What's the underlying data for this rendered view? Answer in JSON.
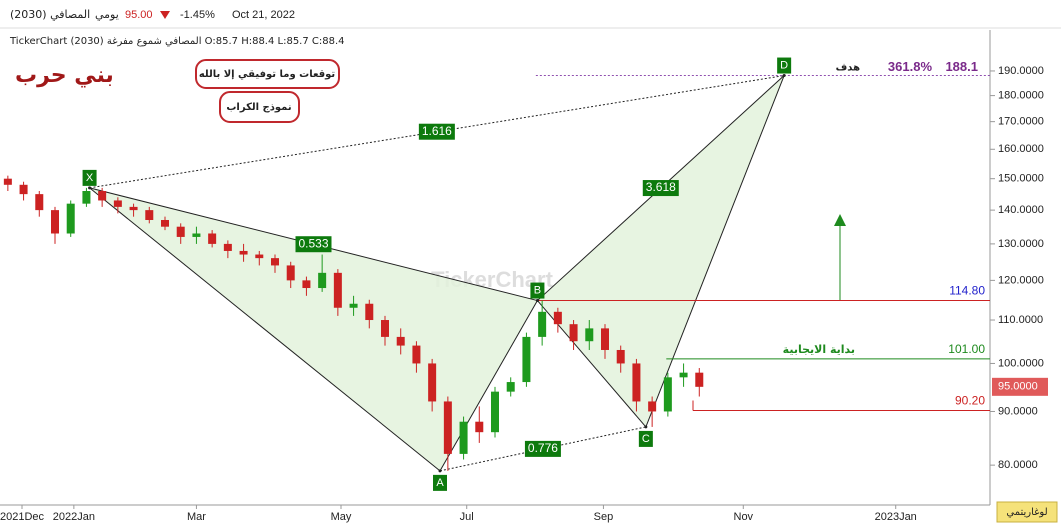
{
  "header": {
    "symbol": "المصافي (2030)",
    "period": "يومي",
    "price": "95.00",
    "change": "-1.45%",
    "date": "Oct 21, 2022",
    "info": "TickerChart المصافي شموع مفرغة (2030) O:85.7 H:88.4 L:85.7 C:88.4"
  },
  "author": "بني حرب",
  "notes": [
    "توقعات وما توفيقي إلا بالله",
    "نموذج الكراب"
  ],
  "watermark": "TickerChart",
  "scale_button": "لوغاريتمي",
  "chart_data": {
    "type": "candlestick",
    "log_scale": true,
    "x": [
      0,
      1,
      2,
      3,
      4,
      5,
      6,
      7,
      8,
      9,
      10,
      11,
      12,
      13,
      14,
      15,
      16,
      17,
      18,
      19,
      20,
      21,
      22,
      23,
      24,
      25,
      26,
      27,
      28,
      29,
      30,
      31,
      32,
      33,
      34,
      35,
      36,
      37,
      38,
      39,
      40,
      41,
      42,
      43,
      44
    ],
    "open": [
      150,
      148,
      145,
      140,
      133,
      142,
      146,
      143,
      141,
      140,
      137,
      135,
      132,
      133,
      130,
      128,
      127,
      126,
      124,
      120,
      118,
      122,
      113,
      114,
      110,
      106,
      104,
      100,
      92,
      82,
      88,
      86,
      94,
      96,
      106,
      112,
      109,
      105,
      108,
      103,
      100,
      92,
      90,
      97,
      98
    ],
    "high": [
      151,
      149,
      146,
      141,
      143,
      147,
      147,
      144,
      142,
      141,
      138,
      136,
      135,
      134,
      131,
      130,
      128,
      127,
      125,
      121,
      127,
      123,
      116,
      115,
      111,
      108,
      105,
      101,
      93,
      89,
      91,
      95,
      97,
      107,
      114.8,
      113,
      110,
      110,
      109,
      104,
      101,
      93,
      98,
      100,
      99
    ],
    "low": [
      146,
      143,
      138,
      130,
      132,
      141,
      141,
      139,
      138,
      136,
      134,
      130,
      130,
      129,
      126,
      125,
      124,
      122,
      118,
      116,
      117,
      111,
      111,
      108,
      104,
      102,
      98,
      90,
      79,
      81,
      84,
      85,
      93,
      95,
      104,
      107,
      103,
      103,
      101,
      98,
      90,
      87,
      89,
      95,
      93
    ],
    "close": [
      148,
      145,
      140,
      133,
      142,
      146,
      143,
      141,
      140,
      137,
      135,
      132,
      133,
      130,
      128,
      127,
      126,
      124,
      120,
      118,
      122,
      113,
      114,
      110,
      106,
      104,
      100,
      92,
      82,
      88,
      86,
      94,
      96,
      106,
      112,
      109,
      105,
      108,
      103,
      100,
      92,
      90,
      97,
      98,
      95
    ],
    "up_color": "#1e9a1e",
    "down_color": "#cc2222",
    "xlim": [
      -0.5,
      62.5
    ],
    "xticks": [
      {
        "value": 0.9,
        "label": "2021Dec"
      },
      {
        "value": 4.2,
        "label": "2022Jan"
      },
      {
        "value": 12.0,
        "label": "Mar"
      },
      {
        "value": 21.2,
        "label": "May"
      },
      {
        "value": 29.2,
        "label": "Jul"
      },
      {
        "value": 37.9,
        "label": "Sep"
      },
      {
        "value": 46.8,
        "label": "Nov"
      },
      {
        "value": 56.5,
        "label": "2023Jan"
      }
    ],
    "ylim": [
      73.3,
      205.6
    ],
    "yticks": [
      {
        "value": 80,
        "label": "80.0000"
      },
      {
        "value": 90,
        "label": "90.0000"
      },
      {
        "value": 100,
        "label": "100.0000"
      },
      {
        "value": 110,
        "label": "110.0000"
      },
      {
        "value": 120,
        "label": "120.0000"
      },
      {
        "value": 130,
        "label": "130.0000"
      },
      {
        "value": 140,
        "label": "140.0000"
      },
      {
        "value": 150,
        "label": "150.0000"
      },
      {
        "value": 160,
        "label": "160.0000"
      },
      {
        "value": 170,
        "label": "170.0000"
      },
      {
        "value": 180,
        "label": "180.0000"
      },
      {
        "value": 190,
        "label": "190.0000"
      }
    ],
    "pattern_points": [
      {
        "label": "X",
        "x": 5.2,
        "value": 147
      },
      {
        "label": "A",
        "x": 27.5,
        "value": 79
      },
      {
        "label": "B",
        "x": 33.7,
        "value": 114.8
      },
      {
        "label": "C",
        "x": 40.6,
        "value": 87
      },
      {
        "label": "D",
        "x": 49.4,
        "value": 188.1
      }
    ],
    "ratios": [
      "0.533",
      "0.776",
      "1.616",
      "3.618"
    ],
    "levels": [
      {
        "value": 114.8,
        "label": "114.80",
        "color": "#2222cc",
        "line_color": "#cc2222",
        "x": 33.7
      },
      {
        "value": 101,
        "label": "101.00",
        "color": "#1e8a1e",
        "line_color": "#1e8a1e",
        "x": 41.9,
        "name": "بداية الايجابية"
      },
      {
        "value": 90.2,
        "label": "90.20",
        "color": "#cc2222",
        "line_color": "#cc2222",
        "x": 43.6
      }
    ],
    "target": {
      "value": 188.1,
      "label": "188.1",
      "percent": "361.8%",
      "name": "هدف",
      "x": 33.6
    },
    "last_price": {
      "value": 95,
      "label": "95.0000"
    }
  }
}
